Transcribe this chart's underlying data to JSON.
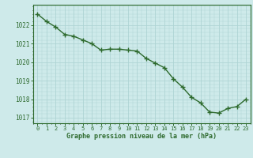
{
  "x": [
    0,
    1,
    2,
    3,
    4,
    5,
    6,
    7,
    8,
    9,
    10,
    11,
    12,
    13,
    14,
    15,
    16,
    17,
    18,
    19,
    20,
    21,
    22,
    23
  ],
  "y": [
    1022.6,
    1022.2,
    1021.9,
    1021.5,
    1021.4,
    1021.2,
    1021.0,
    1020.65,
    1020.7,
    1020.7,
    1020.65,
    1020.6,
    1020.2,
    1019.95,
    1019.7,
    1019.1,
    1018.65,
    1018.1,
    1017.8,
    1017.3,
    1017.25,
    1017.5,
    1017.6,
    1018.0
  ],
  "line_color": "#2d6a2d",
  "marker_color": "#2d6a2d",
  "bg_color": "#ceeaea",
  "grid_color": "#aed4d4",
  "axis_color": "#2d6a2d",
  "xlabel": "Graphe pression niveau de la mer (hPa)",
  "xlabel_color": "#2d6a2d",
  "tick_color": "#2d6a2d",
  "ylim": [
    1016.7,
    1023.1
  ],
  "xlim": [
    -0.5,
    23.5
  ],
  "yticks": [
    1017,
    1018,
    1019,
    1020,
    1021,
    1022
  ],
  "xticks": [
    0,
    1,
    2,
    3,
    4,
    5,
    6,
    7,
    8,
    9,
    10,
    11,
    12,
    13,
    14,
    15,
    16,
    17,
    18,
    19,
    20,
    21,
    22,
    23
  ],
  "line_width": 1.0,
  "marker_size": 4.0
}
